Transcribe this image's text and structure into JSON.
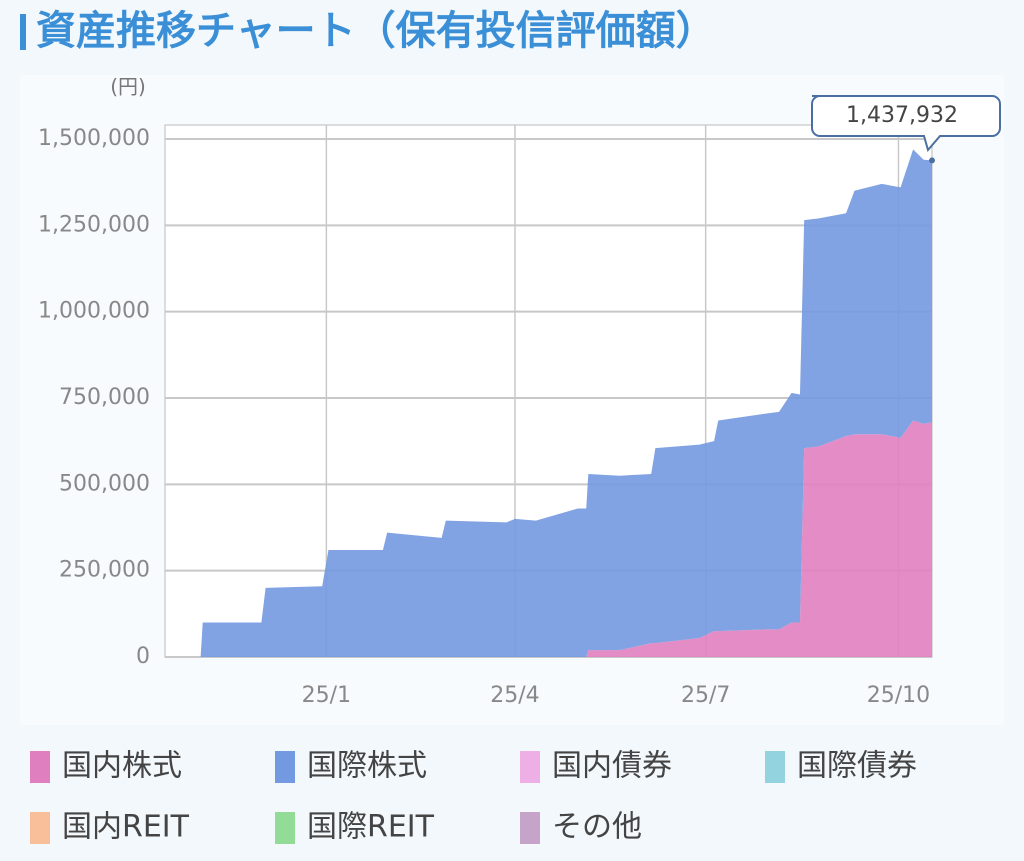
{
  "chart_data": {
    "type": "stacked_area",
    "title": "資産推移チャート（保有投信評価額）",
    "y_unit": "(円)",
    "annotation": "1,437,932",
    "x": [
      -60,
      -59,
      -31,
      -29,
      -2,
      1,
      27,
      29,
      55,
      57,
      86,
      90,
      100,
      120,
      124,
      125,
      140,
      155,
      157,
      178,
      185,
      187,
      210,
      216,
      222,
      226,
      228,
      235,
      248,
      252,
      265,
      274,
      280,
      285,
      289
    ],
    "xlim": [
      -77,
      289
    ],
    "xticks": [
      {
        "value": 0,
        "label": "25/1"
      },
      {
        "value": 90,
        "label": "25/4"
      },
      {
        "value": 181,
        "label": "25/7"
      },
      {
        "value": 273,
        "label": "25/10"
      }
    ],
    "ylim": [
      0,
      1500000
    ],
    "yticks": [
      0,
      {
        "value": 250000,
        "label": "250,000"
      },
      {
        "value": 500000,
        "label": "500,000"
      },
      {
        "value": 750000,
        "label": "750,000"
      },
      {
        "value": 1000000,
        "label": "1,000,000"
      },
      {
        "value": 1250000,
        "label": "1,250,000"
      },
      {
        "value": 1500000,
        "label": "1,500,000"
      }
    ],
    "grid": true,
    "series": [
      {
        "name": "国内株式",
        "color": "#e07fc0",
        "values": [
          0,
          0,
          0,
          0,
          0,
          0,
          0,
          0,
          0,
          0,
          0,
          0,
          0,
          0,
          0,
          20000,
          20000,
          40000,
          40000,
          55000,
          75000,
          75000,
          80000,
          80000,
          100000,
          100000,
          605000,
          610000,
          640000,
          645000,
          645000,
          635000,
          685000,
          675000,
          680000
        ]
      },
      {
        "name": "国際株式",
        "color": "#7399e0",
        "values": [
          0,
          100000,
          100000,
          200000,
          205000,
          310000,
          310000,
          360000,
          345000,
          395000,
          390000,
          400000,
          395000,
          430000,
          430000,
          510000,
          505000,
          490000,
          565000,
          560000,
          550000,
          610000,
          625000,
          630000,
          665000,
          660000,
          660000,
          660000,
          645000,
          705000,
          725000,
          725000,
          785000,
          765000,
          757932
        ]
      },
      {
        "name": "国内債券",
        "color": "#eeaee6",
        "values": [
          0,
          0,
          0,
          0,
          0,
          0,
          0,
          0,
          0,
          0,
          0,
          0,
          0,
          0,
          0,
          0,
          0,
          0,
          0,
          0,
          0,
          0,
          0,
          0,
          0,
          0,
          0,
          0,
          0,
          0,
          0,
          0,
          0,
          0,
          0
        ]
      },
      {
        "name": "国際債券",
        "color": "#93d3e0",
        "values": [
          0,
          0,
          0,
          0,
          0,
          0,
          0,
          0,
          0,
          0,
          0,
          0,
          0,
          0,
          0,
          0,
          0,
          0,
          0,
          0,
          0,
          0,
          0,
          0,
          0,
          0,
          0,
          0,
          0,
          0,
          0,
          0,
          0,
          0,
          0
        ]
      },
      {
        "name": "国内REIT",
        "color": "#f9bf9b",
        "values": [
          0,
          0,
          0,
          0,
          0,
          0,
          0,
          0,
          0,
          0,
          0,
          0,
          0,
          0,
          0,
          0,
          0,
          0,
          0,
          0,
          0,
          0,
          0,
          0,
          0,
          0,
          0,
          0,
          0,
          0,
          0,
          0,
          0,
          0,
          0
        ]
      },
      {
        "name": "国際REIT",
        "color": "#93dc97",
        "values": [
          0,
          0,
          0,
          0,
          0,
          0,
          0,
          0,
          0,
          0,
          0,
          0,
          0,
          0,
          0,
          0,
          0,
          0,
          0,
          0,
          0,
          0,
          0,
          0,
          0,
          0,
          0,
          0,
          0,
          0,
          0,
          0,
          0,
          0,
          0
        ]
      },
      {
        "name": "その他",
        "color": "#c6a3c8",
        "values": [
          0,
          0,
          0,
          0,
          0,
          0,
          0,
          0,
          0,
          0,
          0,
          0,
          0,
          0,
          0,
          0,
          0,
          0,
          0,
          0,
          0,
          0,
          0,
          0,
          0,
          0,
          0,
          0,
          0,
          0,
          0,
          0,
          0,
          0,
          0
        ]
      }
    ]
  }
}
